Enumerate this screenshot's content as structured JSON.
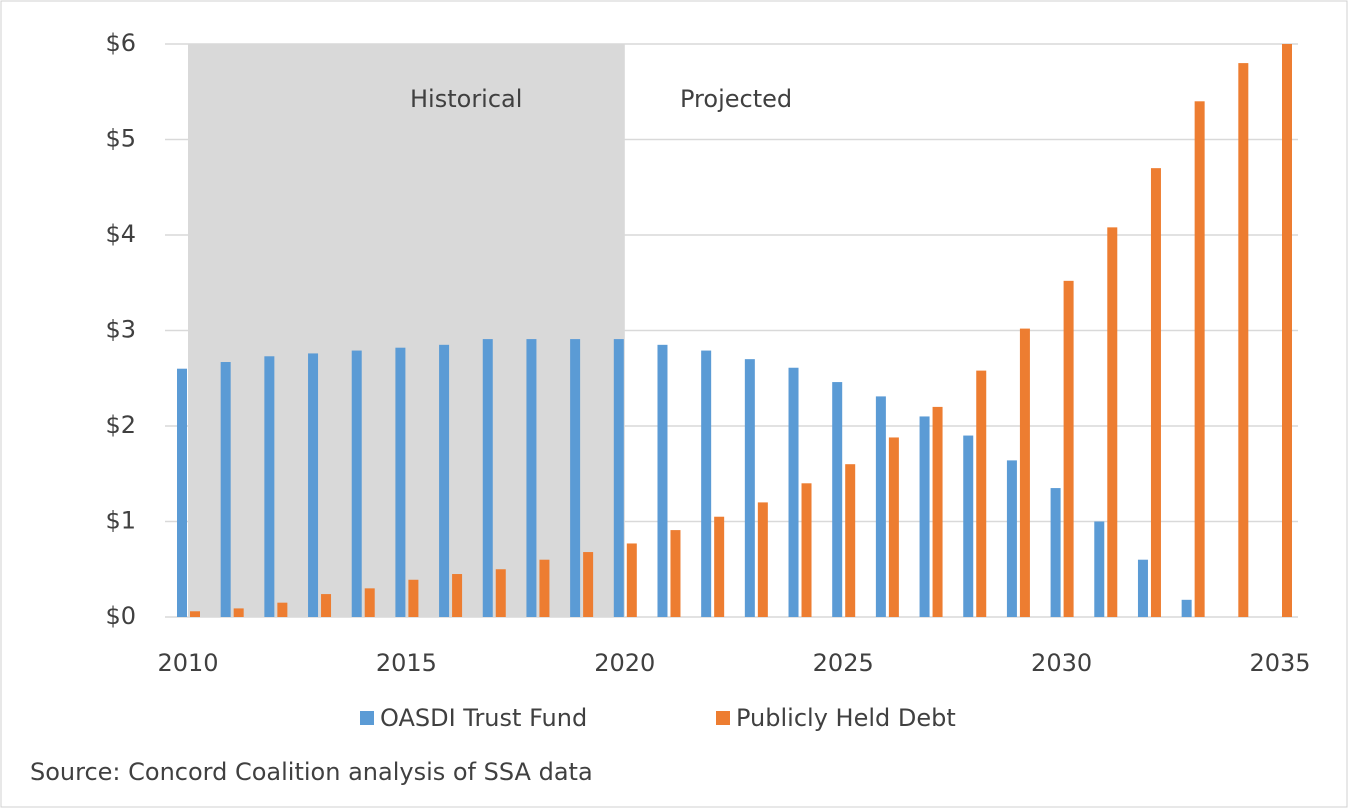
{
  "chart_data": {
    "type": "bar",
    "x": [
      2010,
      2011,
      2012,
      2013,
      2014,
      2015,
      2016,
      2017,
      2018,
      2019,
      2020,
      2021,
      2022,
      2023,
      2024,
      2025,
      2026,
      2027,
      2028,
      2029,
      2030,
      2031,
      2032,
      2033,
      2034,
      2035
    ],
    "series": [
      {
        "name": "OASDI Trust Fund",
        "color": "#5b9bd5",
        "values": [
          2.6,
          2.67,
          2.73,
          2.76,
          2.79,
          2.82,
          2.85,
          2.91,
          2.91,
          2.91,
          2.91,
          2.85,
          2.79,
          2.7,
          2.61,
          2.46,
          2.31,
          2.1,
          1.9,
          1.64,
          1.35,
          1.0,
          0.6,
          0.18,
          null,
          null
        ]
      },
      {
        "name": "Publicly Held Debt",
        "color": "#ed7d31",
        "values": [
          0.06,
          0.09,
          0.15,
          0.24,
          0.3,
          0.39,
          0.45,
          0.5,
          0.6,
          0.68,
          0.77,
          0.91,
          1.05,
          1.2,
          1.4,
          1.6,
          1.88,
          2.2,
          2.58,
          3.02,
          3.52,
          4.08,
          4.7,
          5.4,
          5.8,
          6.0
        ]
      }
    ],
    "xlim": [
      2010,
      2035
    ],
    "xticks": [
      2010,
      2015,
      2020,
      2025,
      2030,
      2035
    ],
    "ylim": [
      0,
      6
    ],
    "yticks": [
      {
        "value": 0,
        "label": "$0"
      },
      {
        "value": 1,
        "label": "$1"
      },
      {
        "value": 2,
        "label": "$2"
      },
      {
        "value": 3,
        "label": "$3"
      },
      {
        "value": 4,
        "label": "$4"
      },
      {
        "value": 5,
        "label": "$5"
      },
      {
        "value": 6,
        "label": "$6"
      }
    ],
    "grid": true,
    "historical_range": [
      2010,
      2020
    ],
    "annotations": [
      "Historical",
      "Projected"
    ],
    "source": "Source: Concord Coalition analysis of SSA data",
    "legend": "bottom"
  }
}
